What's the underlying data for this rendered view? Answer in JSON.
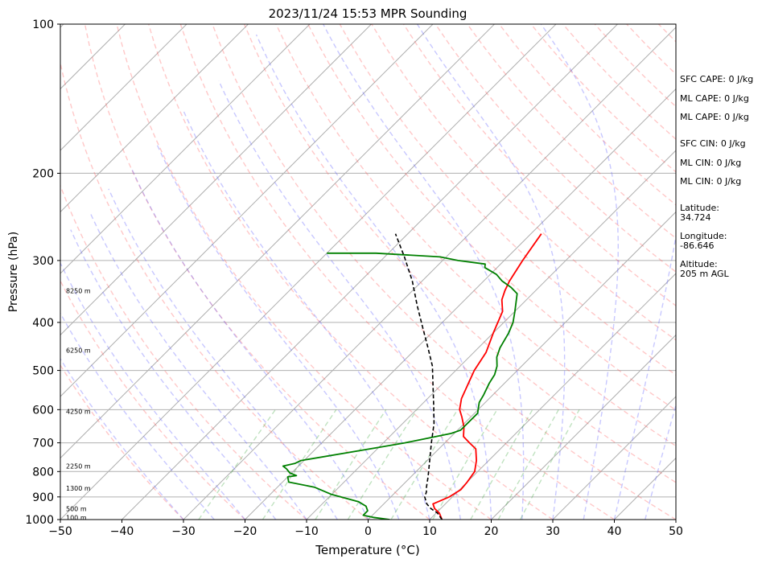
{
  "chart_data": {
    "type": "line",
    "title": "2023/11/24 15:53 MPR Sounding",
    "xlabel": "Temperature (°C)",
    "ylabel": "Pressure (hPa)",
    "xlim": [
      -50,
      50
    ],
    "ylim": [
      1000,
      100
    ],
    "y_scale": "log",
    "skew": "45-degree skew-T log-P",
    "grid": true,
    "x_ticks": [
      -50,
      -40,
      -30,
      -20,
      -10,
      0,
      10,
      20,
      30,
      40,
      50
    ],
    "y_ticks": [
      1000,
      900,
      800,
      700,
      600,
      500,
      400,
      300,
      200,
      100
    ],
    "series": [
      {
        "color": "#ff0000",
        "style": "solid",
        "x": [
          12.0,
          10.5,
          9.0,
          8.0,
          9.5,
          10.2,
          10.0,
          9.5,
          8.0,
          6.0,
          4.0,
          2.0,
          0.5,
          -1.5,
          -3.0,
          -4.5,
          -7.0,
          -8.0,
          -10.0,
          -12.0,
          -14.0,
          -15.0,
          -15.8,
          -17.0,
          -18.3
        ],
        "y": [
          1000,
          970,
          950,
          930,
          900,
          870,
          840,
          800,
          760,
          720,
          700,
          680,
          650,
          620,
          600,
          570,
          500,
          460,
          420,
          380,
          360,
          345,
          330,
          300,
          265
        ]
      },
      {
        "color": "#008000",
        "style": "solid",
        "x": [
          3.5,
          0.5,
          -1.5,
          -1.5,
          -2.5,
          -4.5,
          -10.0,
          -14.0,
          -19.0,
          -20.0,
          -18.8,
          -20.3,
          -21.5,
          -22.5,
          -21.0,
          -20.5,
          -10.0,
          -6.5,
          -4.5,
          -0.5,
          0.5,
          0.5,
          0.5,
          0.0,
          -1.0,
          -1.5,
          -2.5,
          -3.0,
          -4.0,
          -5.5,
          -6.5,
          -7.5,
          -8.5,
          -10.0,
          -12.5,
          -14.5,
          -17.0,
          -19.0,
          -22.0,
          -22.5,
          -27.5,
          -31.0,
          -42.0,
          -50.0
        ],
        "y": [
          1000,
          990,
          980,
          960,
          940,
          920,
          890,
          860,
          840,
          820,
          815,
          805,
          790,
          780,
          770,
          760,
          715,
          700,
          690,
          670,
          660,
          640,
          610,
          600,
          580,
          560,
          530,
          510,
          490,
          470,
          450,
          420,
          400,
          380,
          350,
          340,
          330,
          320,
          310,
          305,
          300,
          295,
          290,
          290
        ]
      },
      {
        "color": "#000000",
        "style": "dashed",
        "x": [
          12.0,
          10.2,
          8.4,
          7.0,
          5.5,
          5.0,
          4.2,
          2.8,
          0.4,
          -2.2,
          -4.9,
          -7.8,
          -11.0,
          -14.5,
          -18.2,
          -22.3,
          -26.8,
          -31.6,
          -36.8,
          -42.0
        ],
        "y": [
          1000,
          970,
          950,
          930,
          900,
          880,
          860,
          820,
          760,
          700,
          640,
          590,
          540,
          490,
          450,
          410,
          370,
          330,
          295,
          265
        ]
      }
    ],
    "annotations": [
      "100 m",
      "500 m",
      "1300 m",
      "2250 m",
      "4250 m",
      "6250 m",
      "8250 m"
    ],
    "side_text": [
      "SFC CAPE: 0 J/kg",
      "ML CAPE: 0 J/kg",
      "ML CAPE: 0 J/kg",
      "SFC CIN: 0 J/kg",
      "ML CIN: 0 J/kg",
      "ML CIN: 0 J/kg",
      "Latitude:",
      "34.724",
      "Longitude:",
      "-86.646",
      "Altitude:",
      "205 m AGL"
    ]
  }
}
